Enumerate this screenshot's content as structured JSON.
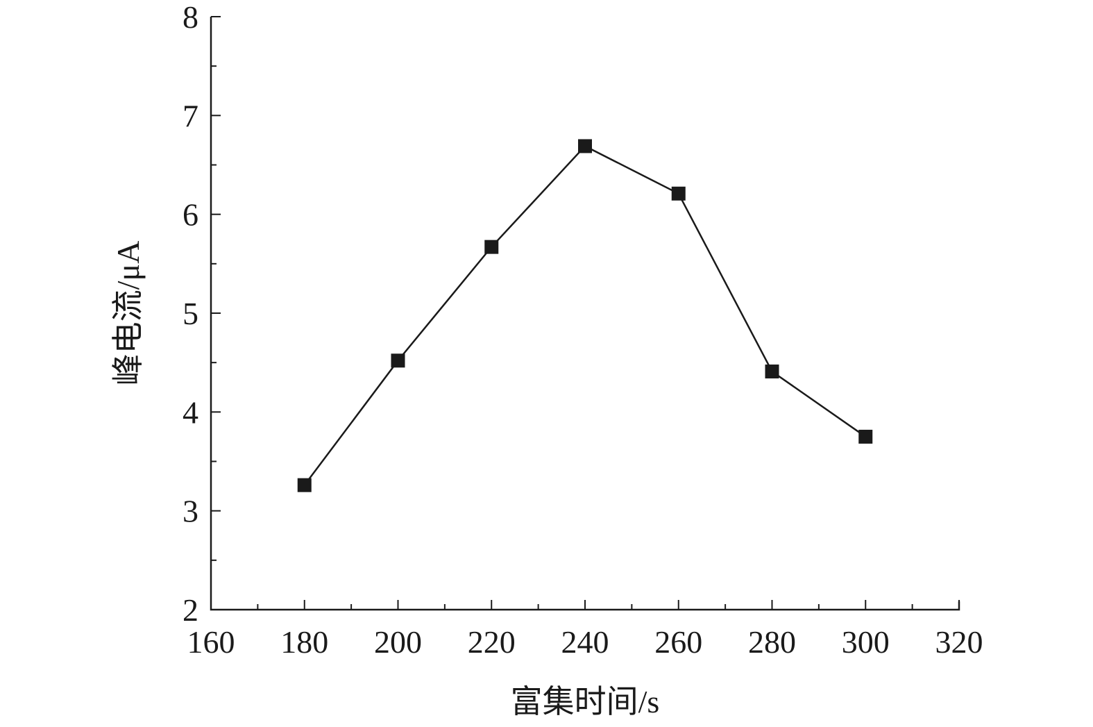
{
  "chart_data": {
    "type": "line",
    "xlabel": "富集时间/s",
    "ylabel": "峰电流/μA",
    "xlim": [
      160,
      320
    ],
    "ylim": [
      2,
      8
    ],
    "x_ticks": [
      160,
      180,
      200,
      220,
      240,
      260,
      280,
      300,
      320
    ],
    "x_minor_step": 10,
    "y_ticks": [
      2,
      3,
      4,
      5,
      6,
      7,
      8
    ],
    "y_minor_step": 0.5,
    "grid": false,
    "series": [
      {
        "marker": "square",
        "color": "#1a1a1a",
        "x": [
          180,
          200,
          220,
          240,
          260,
          280,
          300
        ],
        "y": [
          3.26,
          4.52,
          5.67,
          6.69,
          6.21,
          4.41,
          3.75
        ]
      }
    ]
  }
}
